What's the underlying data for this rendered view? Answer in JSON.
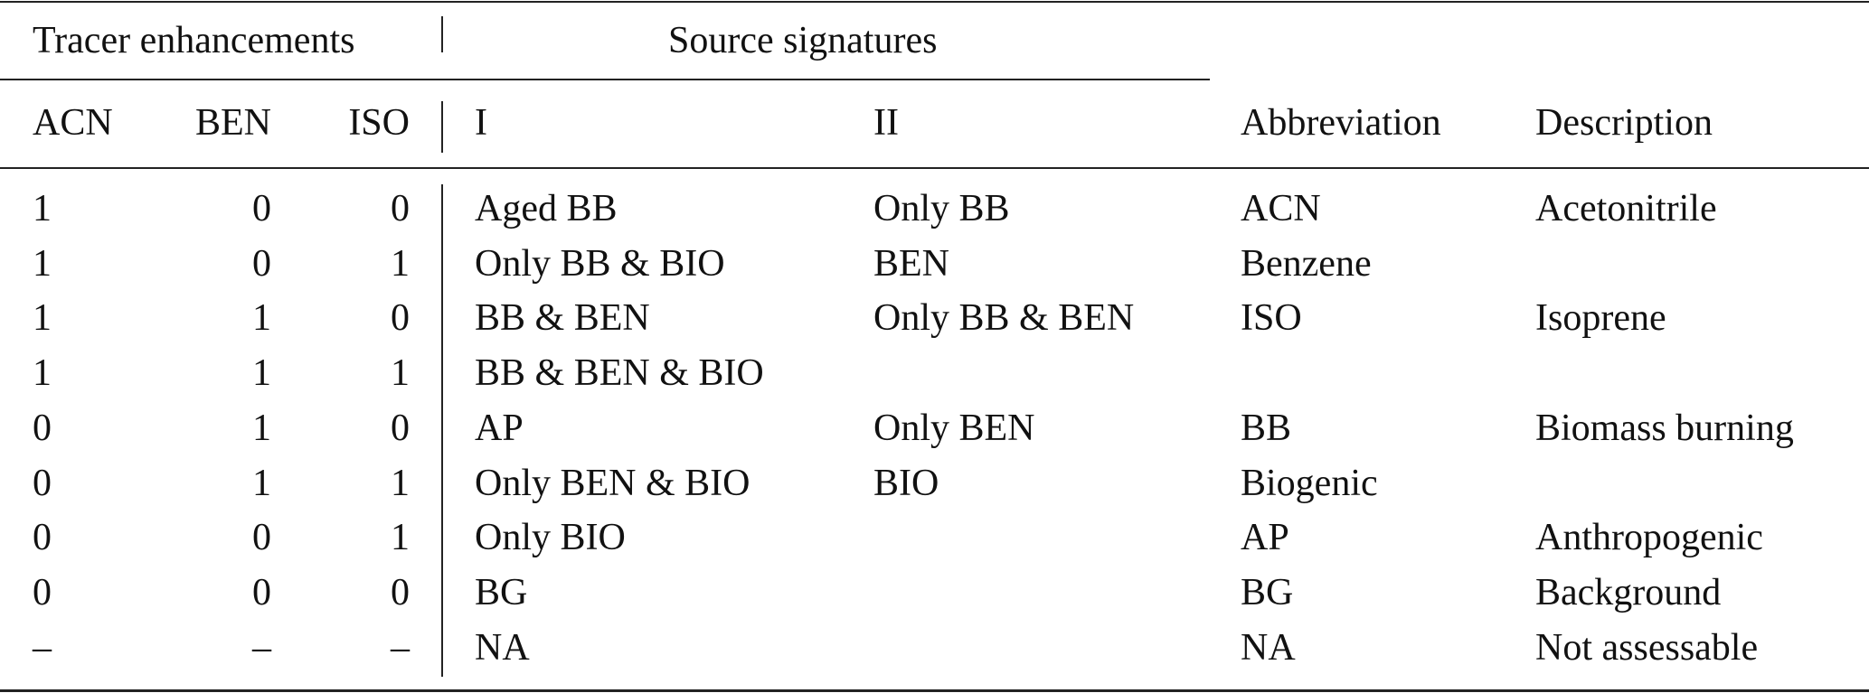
{
  "table": {
    "group_headers": [
      "Tracer enhancements",
      "Source signatures"
    ],
    "columns": [
      "ACN",
      "BEN",
      "ISO",
      "I",
      "II",
      "Abbreviation",
      "Description"
    ],
    "rows": [
      [
        "1",
        "0",
        "0",
        "Aged BB",
        "Only BB",
        "ACN",
        "Acetonitrile"
      ],
      [
        "1",
        "0",
        "1",
        "Only BB & BIO",
        "BEN",
        "Benzene",
        null
      ],
      [
        "1",
        "1",
        "0",
        "BB & BEN",
        "Only BB & BEN",
        "ISO",
        "Isoprene"
      ],
      [
        "1",
        "1",
        "1",
        "BB & BEN & BIO",
        null,
        null,
        null
      ],
      [
        "0",
        "1",
        "0",
        "AP",
        "Only BEN",
        "BB",
        "Biomass burning"
      ],
      [
        "0",
        "1",
        "1",
        "Only BEN & BIO",
        "BIO",
        "Biogenic",
        null
      ],
      [
        "0",
        "0",
        "1",
        "Only BIO",
        null,
        "AP",
        "Anthropogenic"
      ],
      [
        "0",
        "0",
        "0",
        "BG",
        null,
        "BG",
        "Background"
      ],
      [
        "–",
        "–",
        "–",
        "NA",
        null,
        "NA",
        "Not assessable"
      ]
    ]
  }
}
